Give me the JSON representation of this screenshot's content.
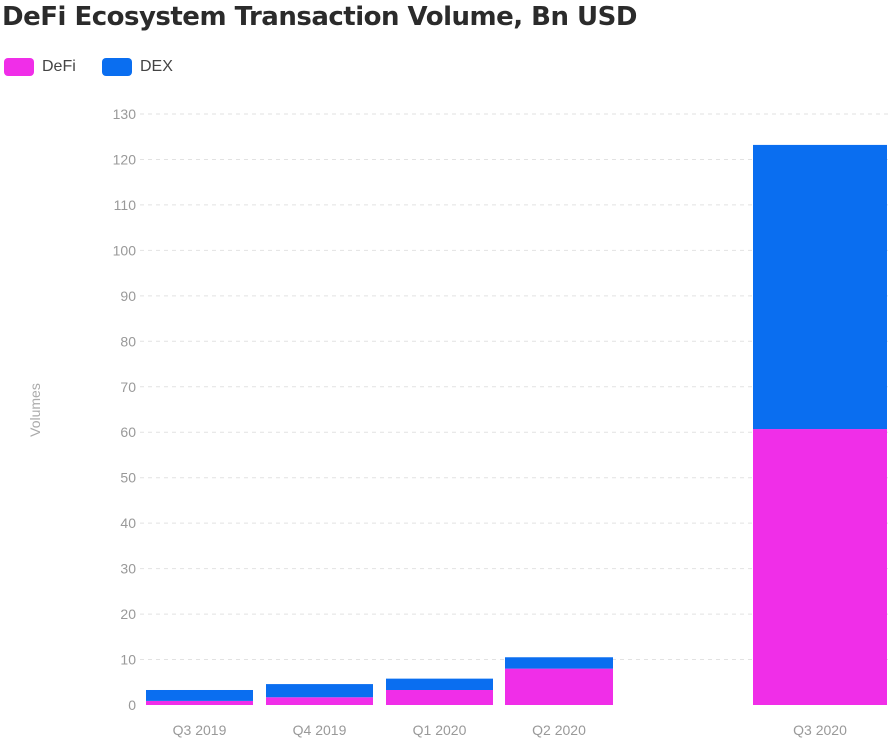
{
  "chart_data": {
    "type": "bar",
    "stacked": true,
    "title": "DeFi Ecosystem Transaction Volume, Bn USD",
    "xlabel": "",
    "ylabel": "Volumes",
    "ylim": [
      0,
      130
    ],
    "yticks": [
      0,
      10,
      20,
      30,
      40,
      50,
      60,
      70,
      80,
      90,
      100,
      110,
      120,
      130
    ],
    "categories": [
      "Q3 2019",
      "Q4 2019",
      "Q1 2020",
      "Q2 2020",
      "Q3 2020"
    ],
    "series": [
      {
        "name": "DeFi",
        "color": "#f02ee8",
        "values": [
          0.9,
          1.7,
          3.3,
          8.0,
          60.7
        ]
      },
      {
        "name": "DEX",
        "color": "#0a6ef0",
        "values": [
          2.4,
          2.9,
          2.5,
          2.5,
          62.5
        ]
      }
    ],
    "grid": true,
    "legend": "top-left"
  }
}
